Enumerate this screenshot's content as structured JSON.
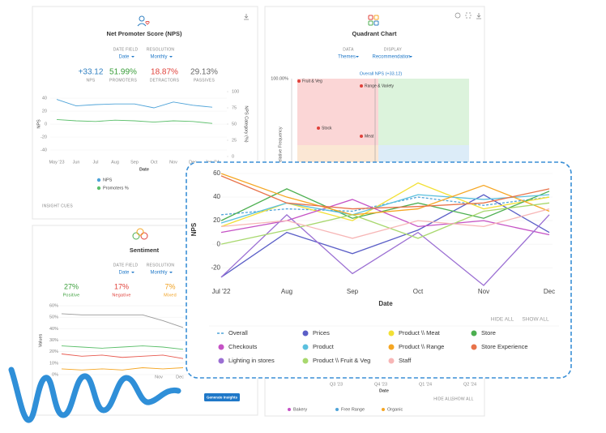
{
  "nps_panel": {
    "title": "Net Promoter Score (NPS)",
    "date_field_label": "DATE FIELD",
    "date_field": "Date",
    "resolution_label": "RESOLUTION",
    "resolution": "Monthly",
    "stats": [
      {
        "value": "+33.12",
        "label": "NPS",
        "color": "#2f7fc1"
      },
      {
        "value": "51.99%",
        "label": "PROMOTERS",
        "color": "#3a9e3a"
      },
      {
        "value": "18.87%",
        "label": "DETRACTORS",
        "color": "#e0413a"
      },
      {
        "value": "29.13%",
        "label": "PASSIVES",
        "color": "#666666"
      }
    ],
    "chart": {
      "type": "line",
      "categories": [
        "May '23",
        "Jun",
        "Jul",
        "Aug",
        "Sep",
        "Oct",
        "Nov",
        "Dec",
        "Jan '24"
      ],
      "series": [
        {
          "name": "NPS",
          "color": "#4ea3d8",
          "values": [
            38,
            28,
            30,
            31,
            31,
            25,
            34,
            29,
            26
          ]
        },
        {
          "name": "Promoters %",
          "color": "#5cbf6b",
          "axis": "y2",
          "values": [
            57,
            55,
            54,
            56,
            55,
            53,
            55,
            54,
            51
          ]
        }
      ],
      "ylim": [
        -50,
        50
      ],
      "yticks": [
        -40,
        -20,
        0,
        20,
        40
      ],
      "y2lim": [
        0,
        100
      ],
      "y2ticks": [
        0,
        25,
        50,
        75,
        100
      ],
      "ylabel": "NPS",
      "y2label": "NPS Category (%)",
      "xlabel": "Date"
    },
    "insight_cues": "INSIGHT CUES"
  },
  "quadrant_panel": {
    "title": "Quadrant Chart",
    "data_label": "DATA",
    "data": "Themes",
    "display_label": "DISPLAY",
    "display": "Recommendation",
    "overall": "Overall NPS (+33.12)",
    "top_tick": "100.00%",
    "ylabel": "Relative Frequency",
    "points": [
      "Fruit & Veg",
      "Range & Variety",
      "Stock",
      "Meat"
    ]
  },
  "sentiment_panel": {
    "title": "Sentiment",
    "date_field_label": "DATE FIELD",
    "date_field": "Date",
    "resolution_label": "RESOLUTION",
    "resolution": "Monthly",
    "stats": [
      {
        "value": "27%",
        "label": "Positive",
        "color": "#3a9e3a"
      },
      {
        "value": "17%",
        "label": "Negative",
        "color": "#e0413a"
      },
      {
        "value": "7%",
        "label": "Mixed",
        "color": "#f0a020"
      }
    ],
    "chart": {
      "type": "line",
      "categories": [
        null,
        null,
        null,
        null,
        null,
        "Nov",
        "Dec"
      ],
      "series": [
        {
          "color": "#9a9a9a",
          "values": [
            53,
            52,
            52,
            52,
            52,
            47,
            41
          ]
        },
        {
          "color": "#5cbf6b",
          "values": [
            25,
            24,
            23,
            24,
            25,
            24,
            22
          ]
        },
        {
          "color": "#e85a50",
          "values": [
            18,
            16,
            17,
            15,
            16,
            17,
            14
          ]
        },
        {
          "color": "#f5a623",
          "values": [
            5,
            4,
            5,
            4,
            6,
            5,
            6
          ]
        }
      ],
      "ylim": [
        0,
        60
      ],
      "yticks": [
        {
          "value": 0,
          "label": "0%"
        },
        {
          "value": 10,
          "label": "10%"
        },
        {
          "value": 20,
          "label": "20%"
        },
        {
          "value": 30,
          "label": "30%"
        },
        {
          "value": 40,
          "label": "40%"
        },
        {
          "value": 50,
          "label": "50%"
        },
        {
          "value": 60,
          "label": "60%"
        }
      ],
      "ylabel": "Values"
    },
    "button": "Generate Insights"
  },
  "bottom_panel": {
    "xticks": [
      "Q3 '23",
      "Q4 '23",
      "Q1 '24",
      "Q2 '24"
    ],
    "xlabel": "Date",
    "hide_all": "HIDE ALL",
    "show_all": "SHOW ALL",
    "legend": [
      {
        "name": "Bakery",
        "color": "#c552c5"
      },
      {
        "name": "Free Range",
        "color": "#4ea3d8"
      },
      {
        "name": "Organic",
        "color": "#f5a623"
      }
    ]
  },
  "chart_data": {
    "type": "line",
    "categories": [
      "Jul '22",
      "Aug",
      "Sep",
      "Oct",
      "Nov",
      "Dec"
    ],
    "ylabel": "NPS",
    "xlabel": "Date",
    "ylim": [
      -35,
      60
    ],
    "yticks": [
      -20,
      0,
      20,
      40,
      60
    ],
    "grid": true,
    "hide_all": "HIDE ALL",
    "show_all": "SHOW ALL",
    "series": [
      {
        "name": "Overall",
        "color": "#4ea3d8",
        "style": "dashed",
        "values": [
          25,
          30,
          28,
          40,
          33,
          40
        ]
      },
      {
        "name": "Prices",
        "color": "#5b5fc7",
        "values": [
          -28,
          10,
          -8,
          12,
          42,
          10
        ]
      },
      {
        "name": "Product \\\\ Meat",
        "color": "#f2e035",
        "values": [
          15,
          35,
          20,
          52,
          30,
          40
        ]
      },
      {
        "name": "Store",
        "color": "#4caf50",
        "values": [
          20,
          47,
          22,
          35,
          22,
          45
        ]
      },
      {
        "name": "Checkouts",
        "color": "#c552c5",
        "values": [
          10,
          20,
          38,
          15,
          20,
          8
        ]
      },
      {
        "name": "Product",
        "color": "#5bc0de",
        "values": [
          18,
          35,
          25,
          42,
          38,
          42
        ]
      },
      {
        "name": "Product \\\\ Range",
        "color": "#f5a623",
        "values": [
          60,
          40,
          25,
          30,
          50,
          28
        ]
      },
      {
        "name": "Store Experience",
        "color": "#e8734a",
        "values": [
          58,
          35,
          30,
          32,
          35,
          47
        ]
      },
      {
        "name": "Lighting in stores",
        "color": "#9b6fd3",
        "values": [
          -28,
          25,
          -25,
          10,
          -35,
          25
        ]
      },
      {
        "name": "Product \\\\ Fruit & Veg",
        "color": "#a8d86e",
        "values": [
          0,
          12,
          25,
          5,
          28,
          35
        ]
      },
      {
        "name": "Staff",
        "color": "#f7b6b6",
        "values": [
          15,
          20,
          5,
          20,
          15,
          30
        ]
      }
    ]
  }
}
